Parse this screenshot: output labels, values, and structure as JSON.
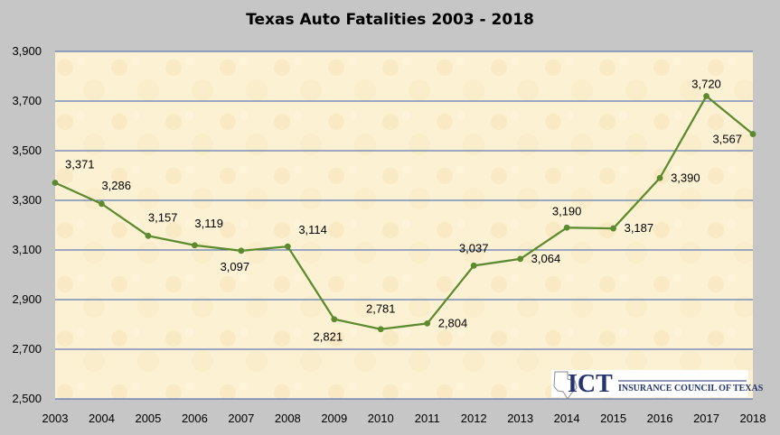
{
  "chart_data": {
    "type": "line",
    "title": "Texas Auto Fatalities 2003 - 2018",
    "xlabel": "",
    "ylabel": "",
    "categories": [
      "2003",
      "2004",
      "2005",
      "2006",
      "2007",
      "2008",
      "2009",
      "2010",
      "2011",
      "2012",
      "2013",
      "2014",
      "2015",
      "2016",
      "2017",
      "2018"
    ],
    "series": [
      {
        "values": [
          3371,
          3286,
          3157,
          3119,
          3097,
          3114,
          2821,
          2781,
          2804,
          3037,
          3064,
          3190,
          3187,
          3390,
          3720,
          3567
        ]
      }
    ],
    "data_labels": [
      "3,371",
      "3,286",
      "3,157",
      "3,119",
      "3,097",
      "3,114",
      "2,821",
      "2,781",
      "2,804",
      "3,037",
      "3,064",
      "3,190",
      "3,187",
      "3,390",
      "3,720",
      "3,567"
    ],
    "y_tick_labels": [
      "2,500",
      "2,700",
      "2,900",
      "3,100",
      "3,300",
      "3,500",
      "3,700",
      "3,900"
    ],
    "ylim": [
      2500,
      3900
    ],
    "y_ticks": [
      2500,
      2700,
      2900,
      3100,
      3300,
      3500,
      3700,
      3900
    ],
    "grid": true,
    "legend": "none",
    "line_color": "#5b8a2f",
    "gridline_color": "#3b5fae",
    "plot_background": "#fbf0d0"
  },
  "logo": {
    "ict": "ICT",
    "subtitle": "INSURANCE COUNCIL OF TEXAS"
  }
}
